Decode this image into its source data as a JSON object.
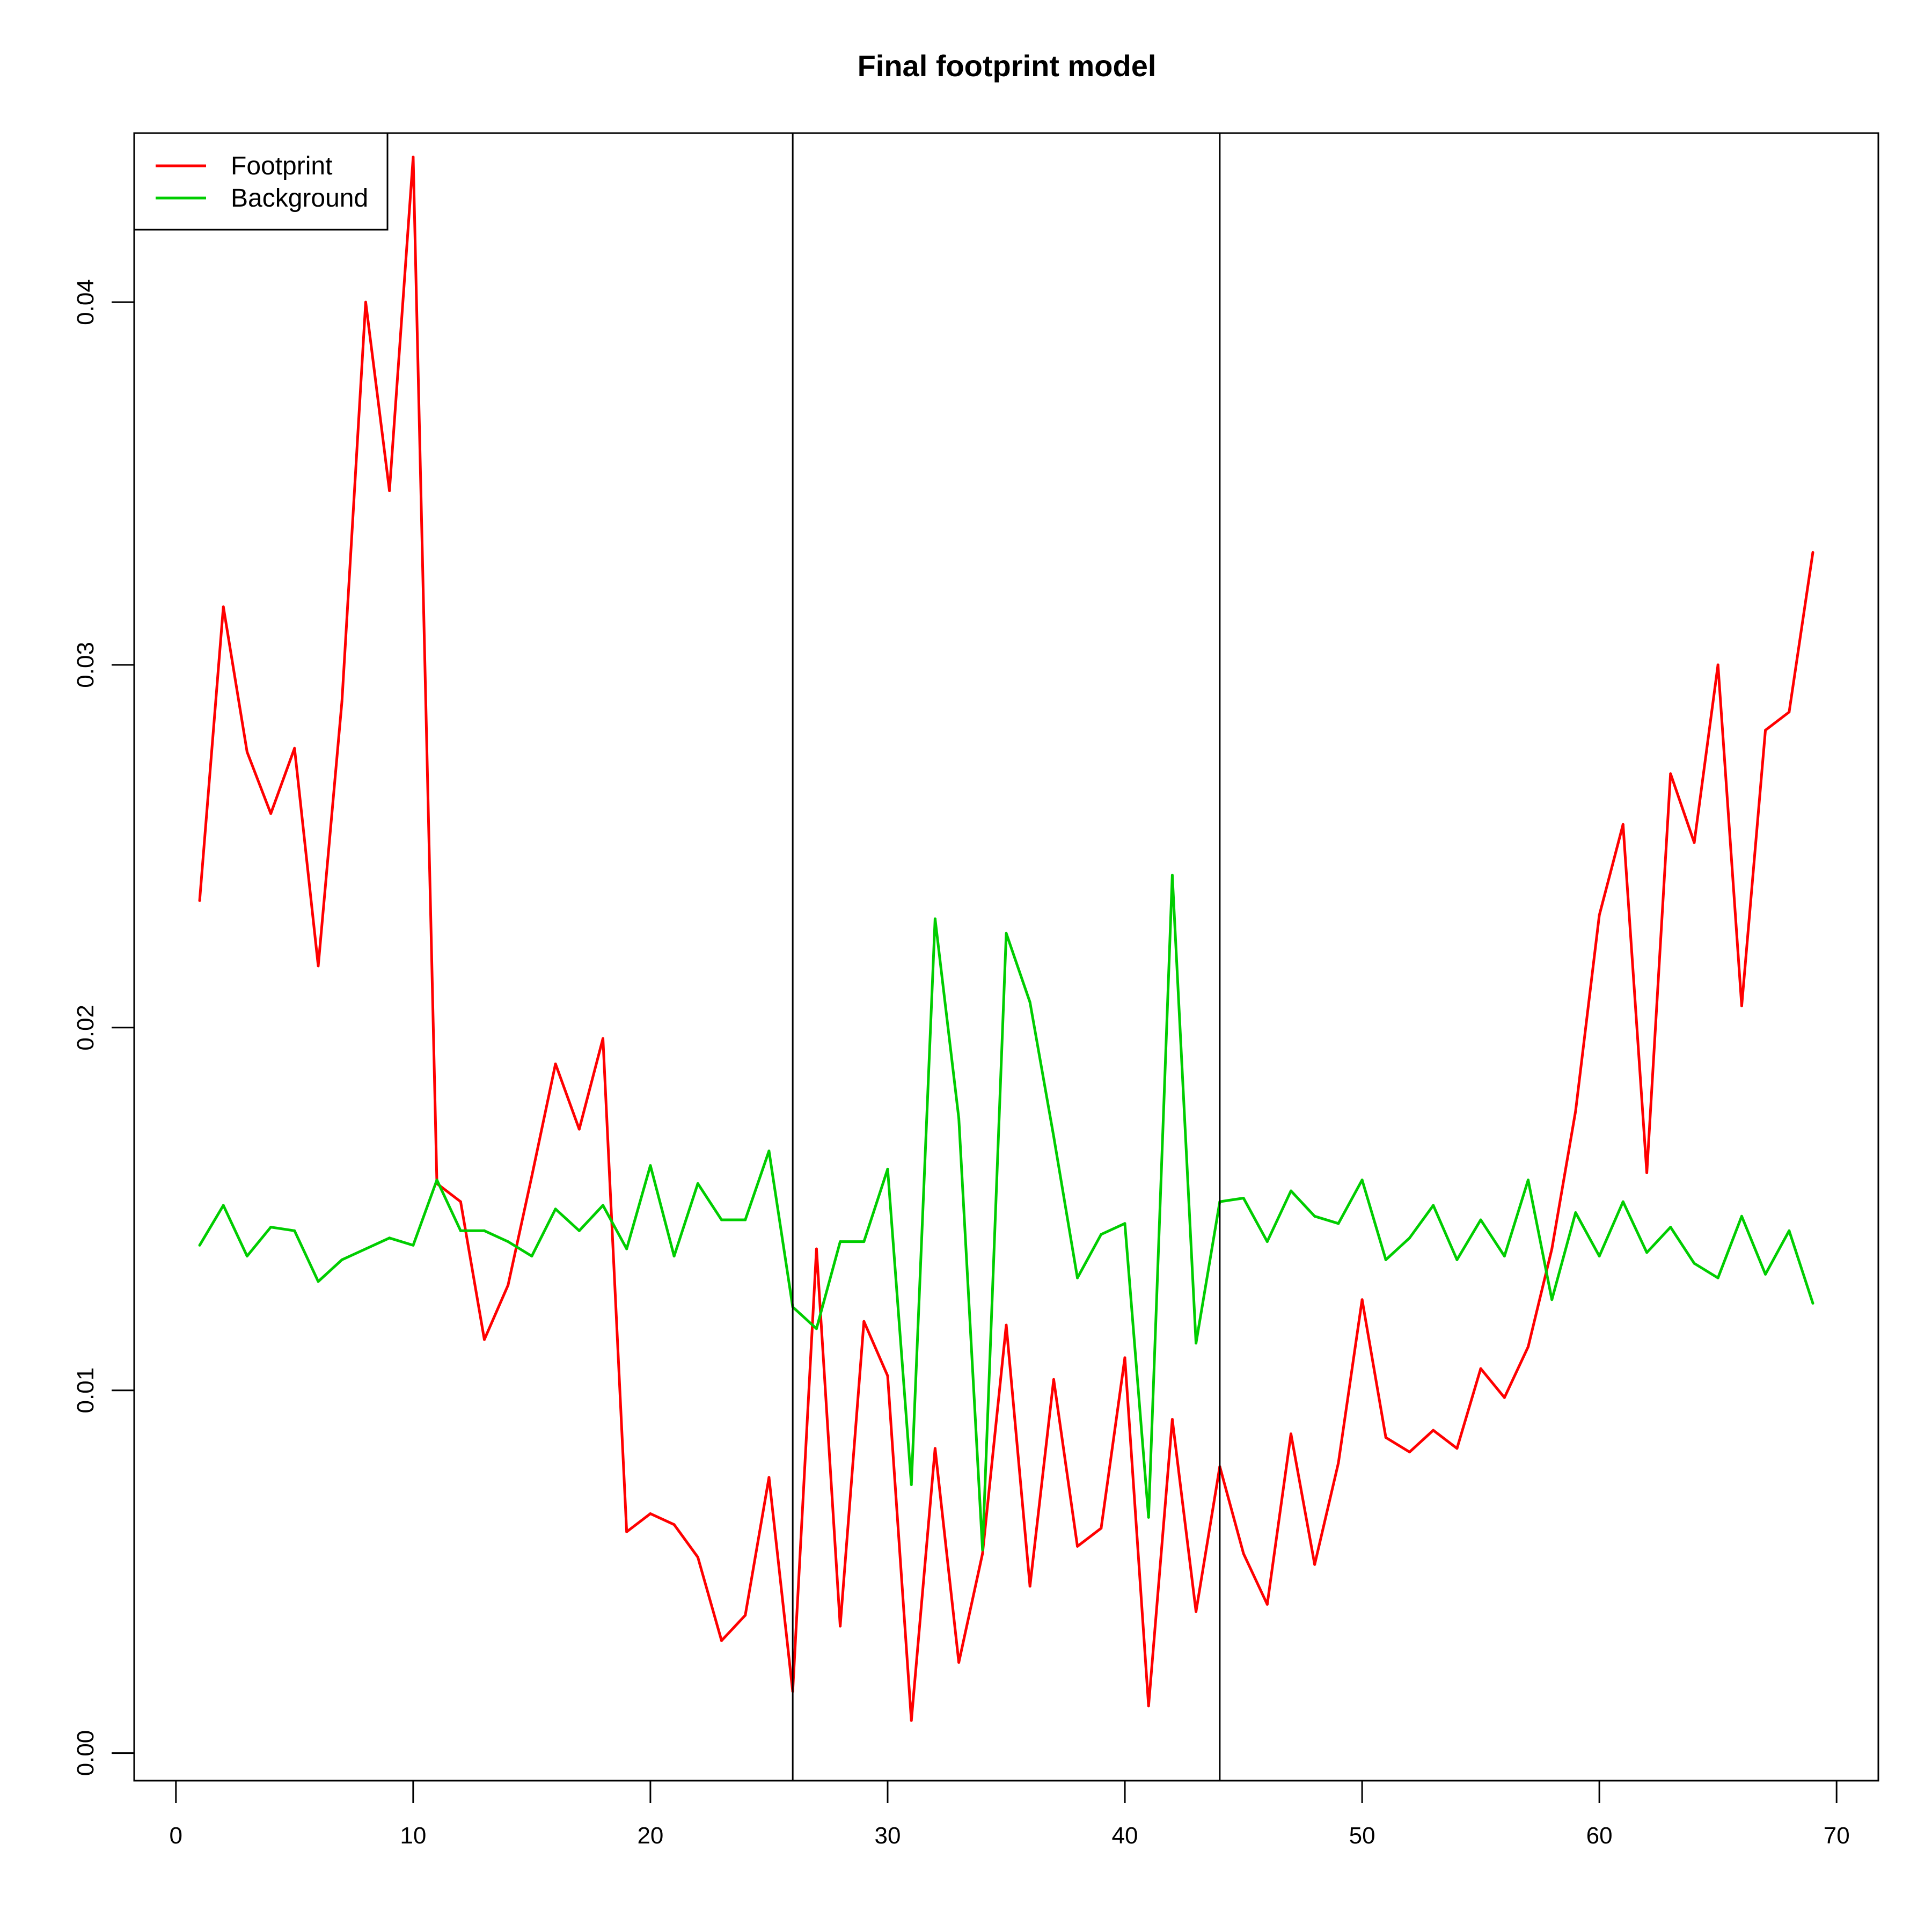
{
  "chart_data": {
    "type": "line",
    "title": "Final footprint model",
    "xlabel": "",
    "ylabel": "",
    "xlim": [
      -1.76,
      71.76
    ],
    "ylim": [
      -0.00076,
      0.04466
    ],
    "xticks": [
      0,
      10,
      20,
      30,
      40,
      50,
      60,
      70
    ],
    "yticks": [
      0.0,
      0.01,
      0.02,
      0.03,
      0.04
    ],
    "ytick_labels": [
      "0.00",
      "0.01",
      "0.02",
      "0.03",
      "0.04"
    ],
    "vlines": [
      26,
      44
    ],
    "legend_position": "top-left",
    "grid": false,
    "x": [
      1,
      2,
      3,
      4,
      5,
      6,
      7,
      8,
      9,
      10,
      11,
      12,
      13,
      14,
      15,
      16,
      17,
      18,
      19,
      20,
      21,
      22,
      23,
      24,
      25,
      26,
      27,
      28,
      29,
      30,
      31,
      32,
      33,
      34,
      35,
      36,
      37,
      38,
      39,
      40,
      41,
      42,
      43,
      44,
      45,
      46,
      47,
      48,
      49,
      50,
      51,
      52,
      53,
      54,
      55,
      56,
      57,
      58,
      59,
      60,
      61,
      62,
      63,
      64,
      65,
      66,
      67,
      68,
      69
    ],
    "series": [
      {
        "name": "Footprint",
        "color": "#ff0000",
        "values": [
          0.0235,
          0.0316,
          0.0276,
          0.0259,
          0.0277,
          0.0217,
          0.029,
          0.04,
          0.0348,
          0.044,
          0.0157,
          0.0152,
          0.0114,
          0.0129,
          0.0159,
          0.019,
          0.0172,
          0.0197,
          0.0061,
          0.0066,
          0.0063,
          0.0054,
          0.0031,
          0.0038,
          0.0076,
          0.0017,
          0.0139,
          0.0035,
          0.0119,
          0.0104,
          0.0009,
          0.0084,
          0.0025,
          0.0055,
          0.0118,
          0.0046,
          0.0103,
          0.0057,
          0.0062,
          0.0109,
          0.0013,
          0.0092,
          0.0039,
          0.0079,
          0.0055,
          0.0041,
          0.0088,
          0.0052,
          0.008,
          0.0125,
          0.0087,
          0.0083,
          0.0089,
          0.0084,
          0.0106,
          0.0098,
          0.0112,
          0.0139,
          0.0177,
          0.0231,
          0.0256,
          0.016,
          0.027,
          0.0251,
          0.03,
          0.0206,
          0.0282,
          0.0287,
          0.0331
        ]
      },
      {
        "name": "Background",
        "color": "#00cd00",
        "values": [
          0.014,
          0.0151,
          0.0137,
          0.0145,
          0.0144,
          0.013,
          0.0136,
          0.0139,
          0.0142,
          0.014,
          0.0158,
          0.0144,
          0.0144,
          0.0141,
          0.0137,
          0.015,
          0.0144,
          0.0151,
          0.0139,
          0.0162,
          0.0137,
          0.0157,
          0.0147,
          0.0147,
          0.0166,
          0.0123,
          0.0117,
          0.0141,
          0.0141,
          0.0161,
          0.0074,
          0.023,
          0.0175,
          0.0056,
          0.0226,
          0.0207,
          0.017,
          0.0131,
          0.0143,
          0.0146,
          0.0065,
          0.0242,
          0.0113,
          0.0152,
          0.0153,
          0.0141,
          0.0155,
          0.0148,
          0.0146,
          0.0158,
          0.0136,
          0.0142,
          0.0151,
          0.0136,
          0.0147,
          0.0137,
          0.0158,
          0.0125,
          0.0149,
          0.0137,
          0.0152,
          0.0138,
          0.0145,
          0.0135,
          0.0131,
          0.0148,
          0.0132,
          0.0144,
          0.0124
        ]
      }
    ]
  }
}
